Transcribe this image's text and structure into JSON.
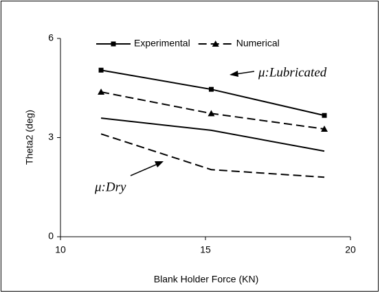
{
  "chart_data": {
    "type": "line",
    "x_label": "Blank Holder Force (KN)",
    "y_label": "Theta2 (deg)",
    "x": [
      11.4,
      15.2,
      19.1
    ],
    "series": [
      {
        "name": "Experimental",
        "color": "#000000",
        "dash": "solid",
        "marker": "square",
        "values": [
          5.04,
          4.46,
          3.67
        ]
      },
      {
        "name": "Numerical",
        "color": "#000000",
        "dash": "dashed",
        "marker": "triangle",
        "values": [
          4.38,
          3.73,
          3.26
        ]
      },
      {
        "color": "#000000",
        "dash": "solid",
        "values": [
          3.59,
          3.22,
          2.59
        ]
      },
      {
        "color": "#000000",
        "dash": "dashed",
        "values": [
          3.11,
          2.03,
          1.8
        ]
      }
    ],
    "xlim": [
      10,
      20
    ],
    "xticks": [
      10,
      15,
      20
    ],
    "ylim": [
      0,
      6
    ],
    "yticks": [
      0,
      3,
      6
    ],
    "annotations": [
      {
        "text": "μ:Lubricated"
      },
      {
        "text": "μ:Dry"
      }
    ]
  }
}
